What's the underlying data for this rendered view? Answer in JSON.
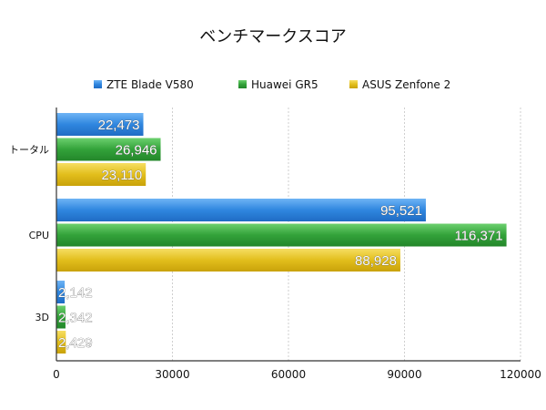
{
  "chart_data": {
    "type": "bar",
    "orientation": "horizontal",
    "title": "ベンチマークスコア",
    "categories": [
      "トータル",
      "CPU",
      "3D"
    ],
    "series": [
      {
        "name": "ZTE Blade V580",
        "color": "#2f86df",
        "values": [
          22473,
          95521,
          2142
        ],
        "labels": [
          "22,473",
          "95,521",
          "2,142"
        ]
      },
      {
        "name": "Huawei GR5",
        "color": "#33a23a",
        "values": [
          26946,
          116371,
          2342
        ],
        "labels": [
          "26,946",
          "116,371",
          "2,342"
        ]
      },
      {
        "name": "ASUS Zenfone 2",
        "color": "#e2be1c",
        "values": [
          23110,
          88928,
          2429
        ],
        "labels": [
          "23,110",
          "88,928",
          "2,429"
        ]
      }
    ],
    "x_ticks": [
      0,
      30000,
      60000,
      90000,
      120000
    ],
    "x_tick_labels": [
      "0",
      "30000",
      "60000",
      "90000",
      "120000"
    ],
    "xlim": [
      0,
      120000
    ],
    "grid": "vertical-dashed",
    "legend_position": "top-center"
  }
}
